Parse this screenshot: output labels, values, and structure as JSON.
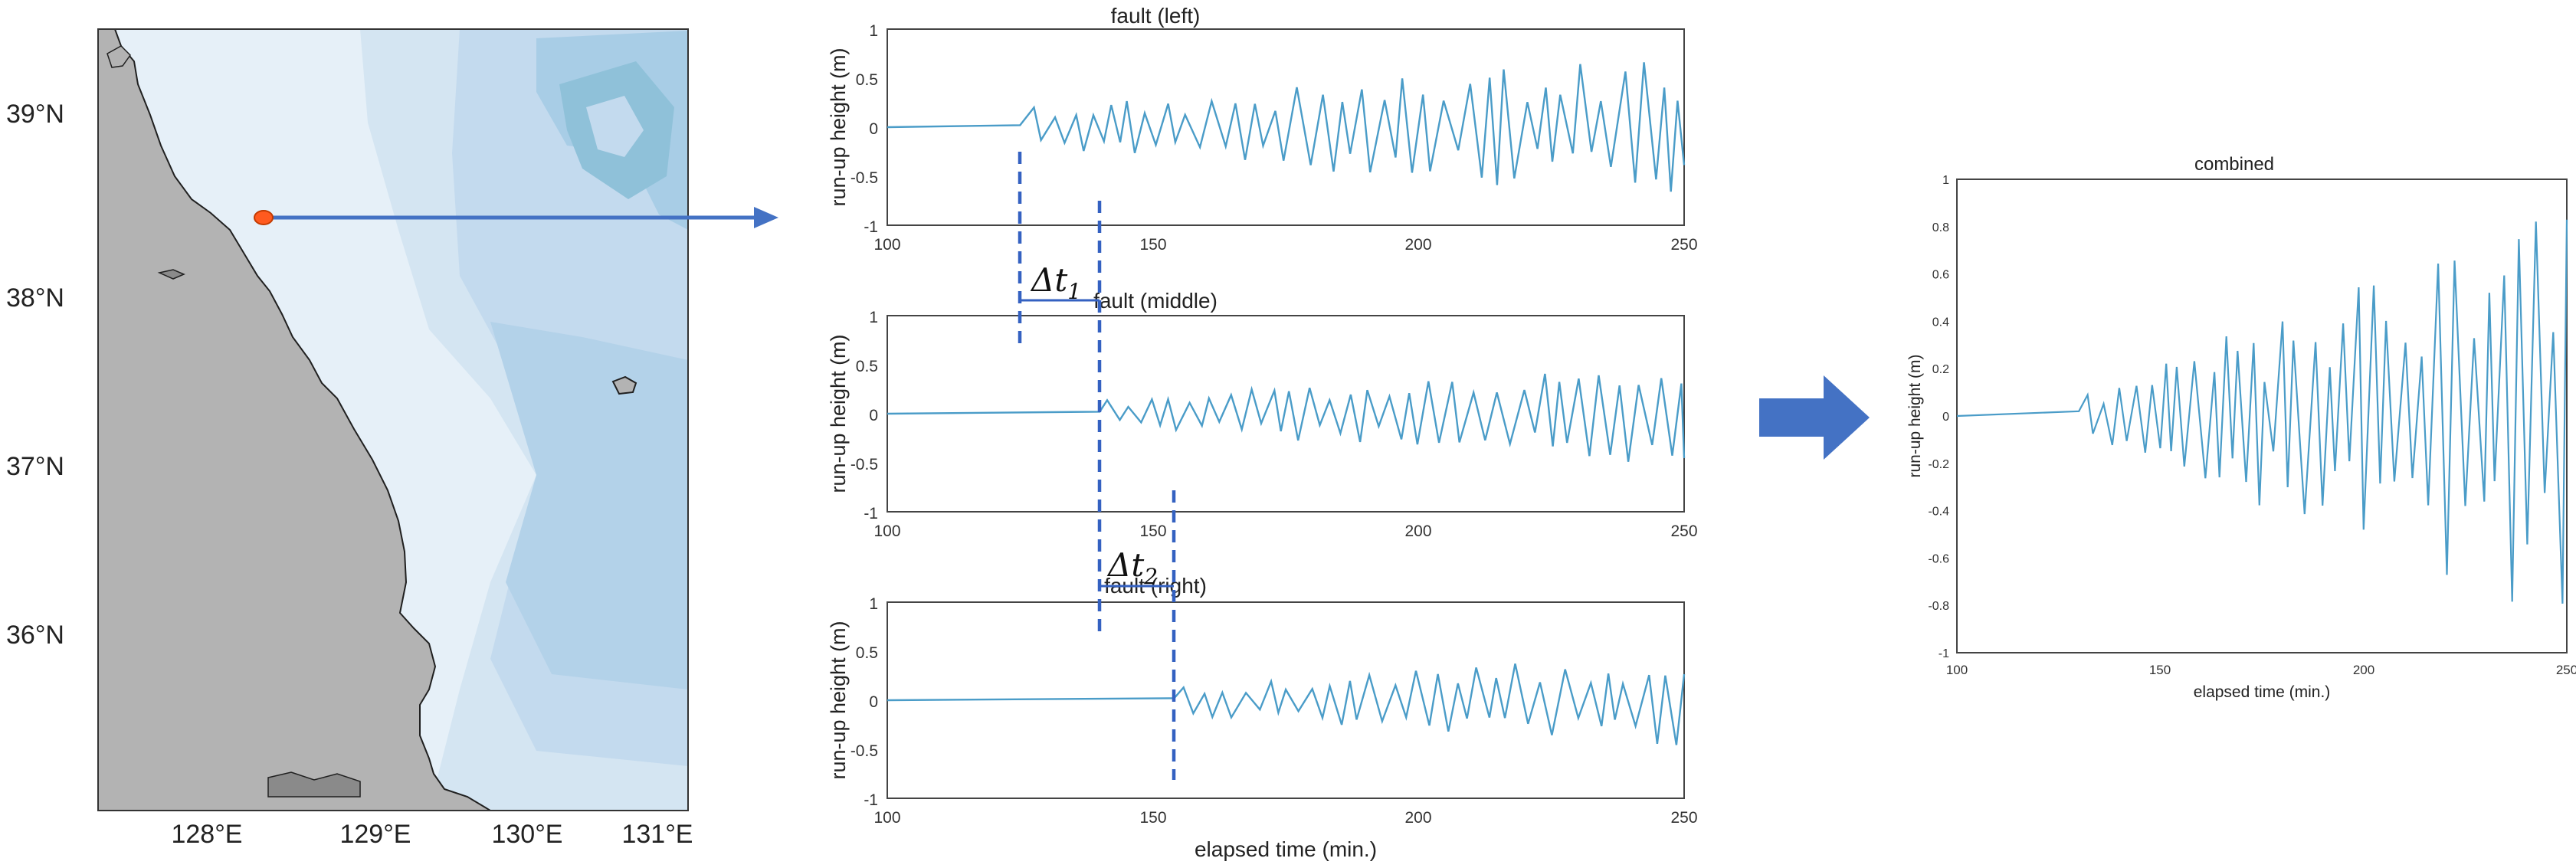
{
  "map": {
    "lat_labels": [
      "39°N",
      "38°N",
      "37°N",
      "36°N"
    ],
    "lon_labels": [
      "128°E",
      "129°E",
      "130°E",
      "131°E"
    ],
    "colors": {
      "land": "#b3b3b3",
      "shallow": "#ffffff",
      "deep": "#8fc1d9",
      "marker": "#ff5a1f",
      "arrow": "#4472c4"
    }
  },
  "panels": {
    "y_axis_label": "run-up height (m)",
    "x_axis_label": "elapsed time (min.)",
    "y_ticks": [
      "1",
      "0.5",
      "0",
      "-0.5",
      "-1"
    ],
    "x_ticks": [
      "100",
      "150",
      "200",
      "250"
    ],
    "items": [
      {
        "title": "fault (left)"
      },
      {
        "title": "fault (middle)"
      },
      {
        "title": "fault (right)"
      }
    ]
  },
  "shift_labels": {
    "dt1": {
      "base": "Δt",
      "sub": "1"
    },
    "dt2": {
      "base": "Δt",
      "sub": "2"
    }
  },
  "combined": {
    "title": "combined",
    "y_axis_label": "run-up height (m)",
    "x_axis_label": "elapsed time (min.)",
    "y_ticks": [
      "1",
      "0.8",
      "0.6",
      "0.4",
      "0.2",
      "0",
      "-0.2",
      "-0.4",
      "-0.6",
      "-0.8",
      "-1"
    ],
    "x_ticks": [
      "100",
      "150",
      "200",
      "250"
    ]
  },
  "chart_data": [
    {
      "type": "line",
      "title": "fault (left)",
      "xlabel": "elapsed time (min.)",
      "ylabel": "run-up height (m)",
      "xlim": [
        100,
        250
      ],
      "ylim": [
        -1,
        1
      ],
      "onset": 125,
      "amplitude": [
        0.2,
        0.75
      ],
      "color": "#4a9cc8"
    },
    {
      "type": "line",
      "title": "fault (middle)",
      "xlabel": "elapsed time (min.)",
      "ylabel": "run-up height (m)",
      "xlim": [
        100,
        250
      ],
      "ylim": [
        -1,
        1
      ],
      "onset": 140,
      "amplitude": [
        0.15,
        0.55
      ],
      "color": "#4a9cc8"
    },
    {
      "type": "line",
      "title": "fault (right)",
      "xlabel": "elapsed time (min.)",
      "ylabel": "run-up height (m)",
      "xlim": [
        100,
        250
      ],
      "ylim": [
        -1,
        1
      ],
      "onset": 154,
      "amplitude": [
        0.15,
        0.5
      ],
      "color": "#4a9cc8"
    },
    {
      "type": "line",
      "title": "combined",
      "xlabel": "elapsed time (min.)",
      "ylabel": "run-up height (m)",
      "xlim": [
        100,
        250
      ],
      "ylim": [
        -1,
        1
      ],
      "onset": 130,
      "amplitude": [
        0.1,
        0.9
      ],
      "color": "#4a9cc8"
    }
  ]
}
